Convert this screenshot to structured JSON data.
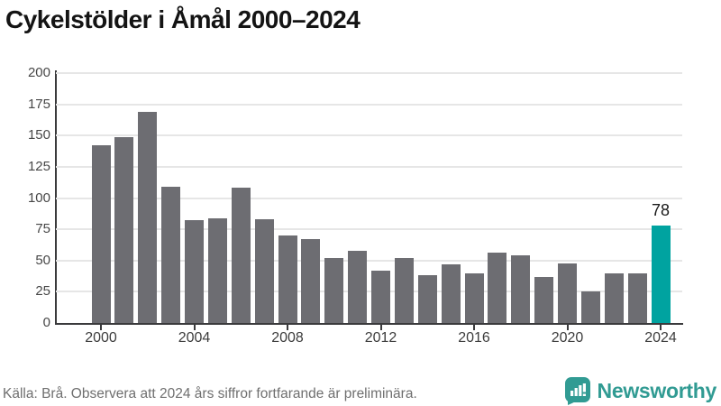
{
  "title": "Cykelstölder i Åmål 2000–2024",
  "footer": {
    "source": "Källa: Brå. Observera att 2024 års siffror fortfarande är preliminära.",
    "brand": "Newsworthy"
  },
  "colors": {
    "bar": "#6d6d72",
    "highlight": "#00a3a0",
    "brand": "#319b93",
    "grid": "#e6e6e6",
    "axis": "#3a3a3c"
  },
  "chart_data": {
    "type": "bar",
    "title": "Cykelstölder i Åmål 2000–2024",
    "x": [
      2000,
      2001,
      2002,
      2003,
      2004,
      2005,
      2006,
      2007,
      2008,
      2009,
      2010,
      2011,
      2012,
      2013,
      2014,
      2015,
      2016,
      2017,
      2018,
      2019,
      2020,
      2021,
      2022,
      2023,
      2024
    ],
    "values": [
      142,
      149,
      169,
      109,
      82,
      84,
      108,
      83,
      70,
      67,
      52,
      58,
      42,
      52,
      38,
      47,
      40,
      56,
      54,
      37,
      48,
      25,
      40,
      40,
      78
    ],
    "highlight_index": 24,
    "annotation": {
      "index": 24,
      "label": "78"
    },
    "ylim": [
      0,
      200
    ],
    "yticks": [
      0,
      25,
      50,
      75,
      100,
      125,
      150,
      175,
      200
    ],
    "xticks": [
      2000,
      2004,
      2008,
      2012,
      2016,
      2020,
      2024
    ],
    "grid": true,
    "legend": false,
    "xlabel": "",
    "ylabel": ""
  }
}
